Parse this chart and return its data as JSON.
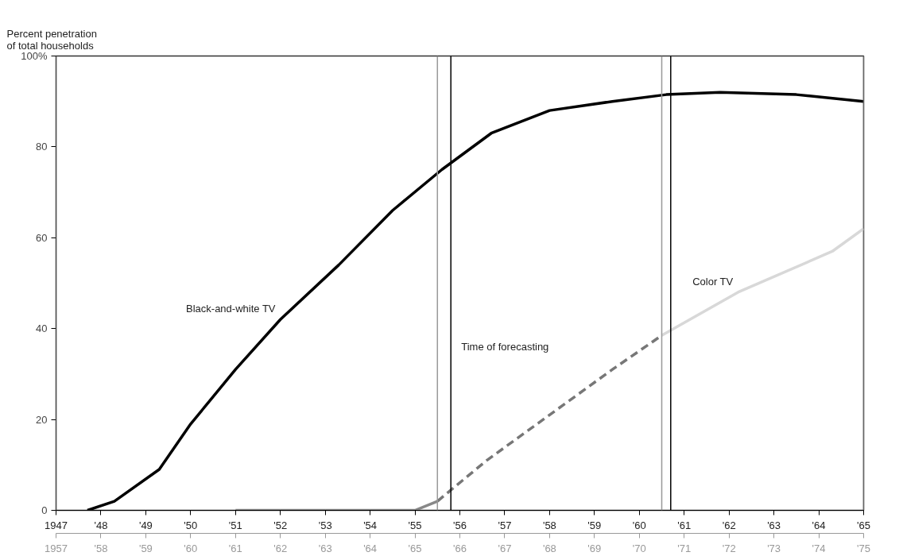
{
  "chart_data": {
    "type": "line",
    "ylabel": "Percent penetration\nof total households",
    "xlim": [
      1947,
      1965
    ],
    "xticks": [
      {
        "value": 1947,
        "label": "1947"
      },
      {
        "value": 1948,
        "label": "'48"
      },
      {
        "value": 1949,
        "label": "'49"
      },
      {
        "value": 1950,
        "label": "'50"
      },
      {
        "value": 1951,
        "label": "'51"
      },
      {
        "value": 1952,
        "label": "'52"
      },
      {
        "value": 1953,
        "label": "'53"
      },
      {
        "value": 1954,
        "label": "'54"
      },
      {
        "value": 1955,
        "label": "'55"
      },
      {
        "value": 1956,
        "label": "'56"
      },
      {
        "value": 1957,
        "label": "'57"
      },
      {
        "value": 1958,
        "label": "'58"
      },
      {
        "value": 1959,
        "label": "'59"
      },
      {
        "value": 1960,
        "label": "'60"
      },
      {
        "value": 1961,
        "label": "'61"
      },
      {
        "value": 1962,
        "label": "'62"
      },
      {
        "value": 1963,
        "label": "'63"
      },
      {
        "value": 1964,
        "label": "'64"
      },
      {
        "value": 1965,
        "label": "'65"
      }
    ],
    "x2lim": [
      1957,
      1975
    ],
    "x2ticks": [
      {
        "value": 1957,
        "label": "1957"
      },
      {
        "value": 1958,
        "label": "'58"
      },
      {
        "value": 1959,
        "label": "'59"
      },
      {
        "value": 1960,
        "label": "'60"
      },
      {
        "value": 1961,
        "label": "'61"
      },
      {
        "value": 1962,
        "label": "'62"
      },
      {
        "value": 1963,
        "label": "'63"
      },
      {
        "value": 1964,
        "label": "'64"
      },
      {
        "value": 1965,
        "label": "'65"
      },
      {
        "value": 1966,
        "label": "'66"
      },
      {
        "value": 1967,
        "label": "'67"
      },
      {
        "value": 1968,
        "label": "'68"
      },
      {
        "value": 1969,
        "label": "'69"
      },
      {
        "value": 1970,
        "label": "'70"
      },
      {
        "value": 1971,
        "label": "'71"
      },
      {
        "value": 1972,
        "label": "'72"
      },
      {
        "value": 1973,
        "label": "'73"
      },
      {
        "value": 1974,
        "label": "'74"
      },
      {
        "value": 1975,
        "label": "'75"
      }
    ],
    "ylim": [
      0,
      100
    ],
    "yticks": [
      0,
      20,
      40,
      60,
      80,
      {
        "value": 100,
        "label": "100%"
      }
    ],
    "grid": false,
    "legend": false,
    "series": [
      {
        "name": "Black-and-white TV",
        "color": "#000000",
        "line_style": "solid",
        "x": [
          1947.7,
          1948.3,
          1949.3,
          1950.0,
          1951.0,
          1952.0,
          1953.3,
          1954.5,
          1955.6,
          1956.7,
          1958.0,
          1959.4,
          1960.6,
          1961.8,
          1963.5,
          1965.0
        ],
        "values": [
          0,
          2,
          9,
          19,
          31,
          42,
          54,
          66,
          75,
          83,
          88,
          90,
          91.5,
          92,
          91.5,
          90
        ]
      },
      {
        "axis": "x2",
        "color": "#888888",
        "line_style": "solid",
        "x": [
          1961,
          1963,
          1965,
          1965.5
        ],
        "values": [
          0,
          0,
          0,
          2
        ]
      },
      {
        "axis": "x2",
        "color": "#777777",
        "line_style": "dashed",
        "x": [
          1965.5,
          1966.6,
          1968.0,
          1969.4,
          1970.5
        ],
        "values": [
          2,
          11,
          21,
          31,
          38.5
        ]
      },
      {
        "name": "Color TV",
        "axis": "x2",
        "color": "#d8d8d8",
        "line_style": "solid",
        "x": [
          1970.5,
          1972.2,
          1974.3,
          1975
        ],
        "values": [
          38.5,
          48,
          57,
          62
        ]
      }
    ],
    "ref_lines": [
      {
        "axis": "x",
        "value": 1955.8,
        "color": "#000000"
      },
      {
        "axis": "x",
        "value": 1960.7,
        "color": "#000000"
      },
      {
        "axis": "x2",
        "value": 1957,
        "color": "#999999"
      },
      {
        "axis": "x2",
        "value": 1965.5,
        "color": "#999999",
        "label": "Time of forecasting"
      },
      {
        "axis": "x2",
        "value": 1970.5,
        "color": "#999999"
      },
      {
        "axis": "x2",
        "value": 1975,
        "color": "#999999"
      }
    ]
  }
}
